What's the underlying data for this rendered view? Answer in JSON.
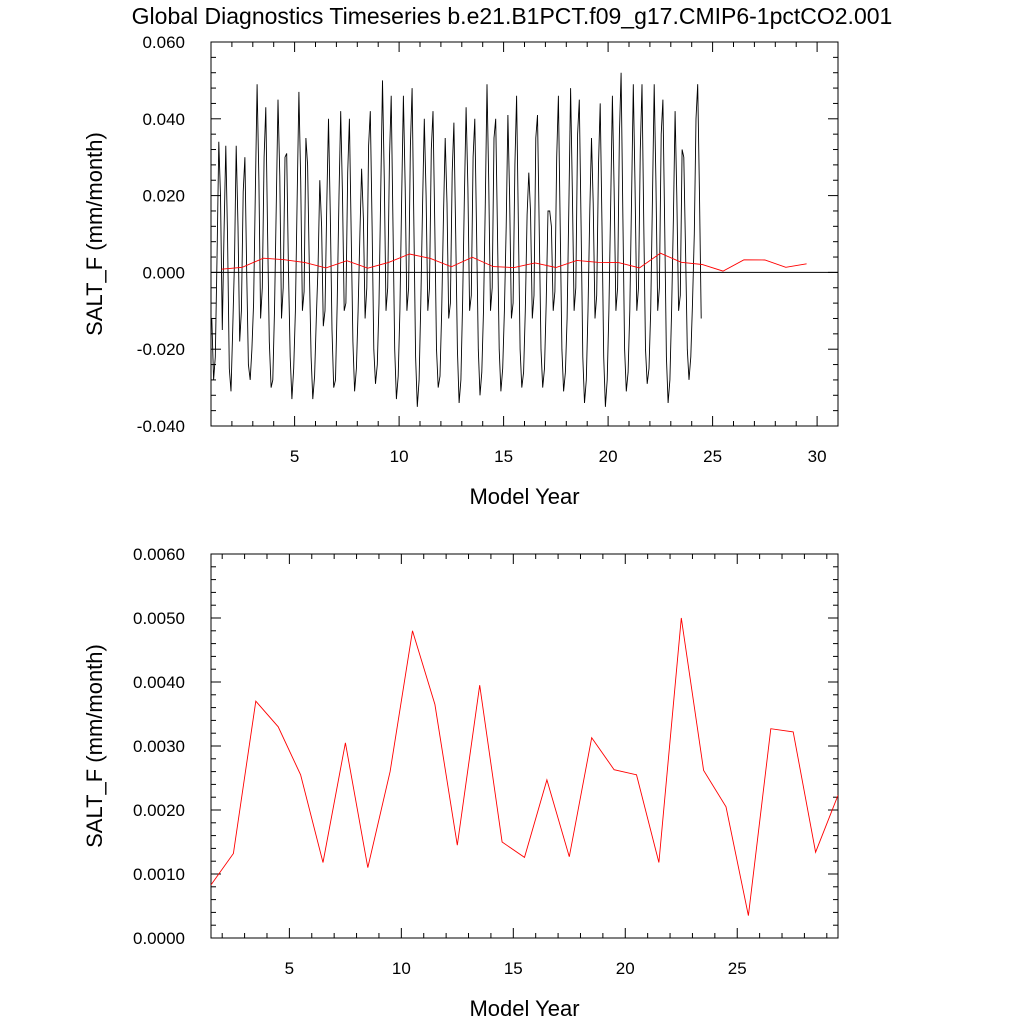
{
  "title": "Global Diagnostics Timeseries b.e21.B1PCT.f09_g17.CMIP6-1pctCO2.001",
  "colors": {
    "monthly": "#000000",
    "annual": "#ff0000",
    "frame": "#000000"
  },
  "chart_data": [
    {
      "type": "line",
      "xlabel": "Model Year",
      "ylabel": "SALT_F (mm/month)",
      "xlim": [
        1.0,
        31.0
      ],
      "ylim": [
        -0.04,
        0.06
      ],
      "xticks": [
        5,
        10,
        15,
        20,
        25,
        30
      ],
      "yticks": [
        -0.04,
        -0.02,
        0.0,
        0.02,
        0.04,
        0.06
      ],
      "ytick_labels": [
        "-0.040",
        "-0.020",
        "0.000",
        "0.020",
        "0.040",
        "0.060"
      ],
      "xtick_labels": [
        "5",
        "10",
        "15",
        "20",
        "25",
        "30"
      ],
      "zero_line": true,
      "series": [
        {
          "role": "monthly",
          "x_start": 1.04,
          "x_step": 0.08333,
          "y": [
            -0.012,
            -0.028,
            -0.022,
            0.005,
            0.034,
            0.02,
            -0.015,
            0.01,
            0.033,
            0.01,
            -0.025,
            -0.031,
            -0.015,
            0.003,
            0.033,
            0.012,
            -0.018,
            -0.01,
            0.021,
            0.03,
            0.0,
            -0.024,
            -0.028,
            -0.02,
            -0.008,
            0.022,
            0.049,
            0.024,
            -0.012,
            -0.004,
            0.03,
            0.043,
            0.01,
            -0.018,
            -0.03,
            -0.028,
            -0.01,
            0.018,
            0.045,
            0.025,
            -0.012,
            -0.004,
            0.03,
            0.031,
            0.0,
            -0.022,
            -0.033,
            -0.025,
            -0.01,
            0.02,
            0.047,
            0.024,
            -0.01,
            -0.005,
            0.035,
            0.028,
            0.0,
            -0.022,
            -0.033,
            -0.027,
            -0.012,
            0.002,
            0.024,
            0.012,
            -0.014,
            -0.01,
            0.018,
            0.04,
            0.015,
            -0.015,
            -0.03,
            -0.028,
            -0.008,
            0.02,
            0.042,
            0.02,
            -0.01,
            -0.008,
            0.026,
            0.04,
            0.01,
            -0.018,
            -0.031,
            -0.025,
            -0.01,
            0.01,
            0.027,
            0.014,
            -0.012,
            -0.004,
            0.033,
            0.042,
            0.012,
            -0.02,
            -0.029,
            -0.024,
            -0.008,
            0.022,
            0.05,
            0.024,
            -0.01,
            -0.004,
            0.03,
            0.046,
            0.012,
            -0.02,
            -0.033,
            -0.027,
            -0.01,
            0.02,
            0.046,
            0.022,
            -0.01,
            -0.004,
            0.033,
            0.048,
            0.012,
            -0.022,
            -0.035,
            -0.028,
            -0.008,
            0.018,
            0.04,
            0.02,
            -0.01,
            -0.004,
            0.032,
            0.042,
            0.012,
            -0.02,
            -0.03,
            -0.027,
            -0.01,
            0.015,
            0.035,
            0.018,
            -0.012,
            -0.008,
            0.026,
            0.039,
            0.01,
            -0.02,
            -0.034,
            -0.028,
            -0.008,
            0.02,
            0.043,
            0.022,
            -0.01,
            -0.006,
            0.03,
            0.04,
            0.01,
            -0.02,
            -0.032,
            -0.026,
            -0.01,
            0.018,
            0.049,
            0.024,
            -0.01,
            -0.004,
            0.035,
            0.04,
            0.01,
            -0.02,
            -0.031,
            -0.025,
            -0.01,
            0.012,
            0.041,
            0.02,
            -0.012,
            -0.008,
            0.028,
            0.046,
            0.012,
            -0.02,
            -0.03,
            -0.026,
            -0.01,
            0.015,
            0.026,
            0.016,
            -0.012,
            -0.006,
            0.035,
            0.041,
            0.01,
            -0.02,
            -0.03,
            -0.025,
            -0.008,
            0.016,
            0.016,
            0.012,
            -0.01,
            -0.005,
            0.03,
            0.046,
            0.012,
            -0.02,
            -0.031,
            -0.026,
            -0.012,
            0.018,
            0.048,
            0.022,
            -0.01,
            -0.004,
            0.036,
            0.045,
            0.012,
            -0.022,
            -0.034,
            -0.028,
            -0.01,
            0.016,
            0.035,
            0.018,
            -0.012,
            -0.006,
            0.028,
            0.044,
            0.012,
            -0.022,
            -0.035,
            -0.028,
            -0.01,
            0.018,
            0.046,
            0.022,
            -0.01,
            -0.004,
            0.036,
            0.052,
            0.014,
            -0.02,
            -0.031,
            -0.026,
            -0.01,
            0.02,
            0.049,
            0.023,
            -0.01,
            -0.004,
            0.032,
            0.049,
            0.012,
            -0.02,
            -0.029,
            -0.025,
            -0.01,
            0.02,
            0.049,
            0.024,
            -0.01,
            -0.004,
            0.036,
            0.045,
            0.012,
            -0.022,
            -0.034,
            -0.028,
            -0.01,
            0.014,
            0.042,
            0.02,
            -0.01,
            -0.006,
            0.032,
            0.03,
            0.005,
            -0.02,
            -0.028,
            -0.022,
            -0.008,
            0.01,
            0.04,
            0.049,
            0.02,
            -0.012
          ]
        },
        {
          "role": "annual",
          "x": [
            1.5,
            2.5,
            3.5,
            4.5,
            5.5,
            6.5,
            7.5,
            8.5,
            9.5,
            10.5,
            11.5,
            12.5,
            13.5,
            14.5,
            15.5,
            16.5,
            17.5,
            18.5,
            19.5,
            20.5,
            21.5,
            22.5,
            23.5,
            24.5,
            25.5,
            26.5,
            27.5,
            28.5,
            29.5
          ],
          "y": [
            0.00083,
            0.00132,
            0.0037,
            0.0033,
            0.00255,
            0.00118,
            0.00305,
            0.0011,
            0.0026,
            0.0048,
            0.00365,
            0.00145,
            0.00395,
            0.0015,
            0.00126,
            0.00247,
            0.00127,
            0.00313,
            0.00263,
            0.00255,
            0.00118,
            0.005,
            0.00262,
            0.00205,
            0.00035,
            0.00327,
            0.00322,
            0.00134,
            0.00223
          ]
        }
      ]
    },
    {
      "type": "line",
      "xlabel": "Model Year",
      "ylabel": "SALT_F (mm/month)",
      "xlim": [
        1.5,
        29.5
      ],
      "ylim": [
        0.0,
        0.006
      ],
      "xticks": [
        5,
        10,
        15,
        20,
        25
      ],
      "xtick_labels": [
        "5",
        "10",
        "15",
        "20",
        "25"
      ],
      "yticks": [
        0.0,
        0.001,
        0.002,
        0.003,
        0.004,
        0.005,
        0.006
      ],
      "ytick_labels": [
        "0.0000",
        "0.0010",
        "0.0020",
        "0.0030",
        "0.0040",
        "0.0050",
        "0.0060"
      ],
      "zero_line": false,
      "series": [
        {
          "role": "annual",
          "x": [
            1.5,
            2.5,
            3.5,
            4.5,
            5.5,
            6.5,
            7.5,
            8.5,
            9.5,
            10.5,
            11.5,
            12.5,
            13.5,
            14.5,
            15.5,
            16.5,
            17.5,
            18.5,
            19.5,
            20.5,
            21.5,
            22.5,
            23.5,
            24.5,
            25.5,
            26.5,
            27.5,
            28.5,
            29.5
          ],
          "y": [
            0.00083,
            0.00132,
            0.0037,
            0.0033,
            0.00255,
            0.00118,
            0.00305,
            0.0011,
            0.0026,
            0.0048,
            0.00365,
            0.00145,
            0.00395,
            0.0015,
            0.00126,
            0.00247,
            0.00127,
            0.00313,
            0.00263,
            0.00255,
            0.00118,
            0.005,
            0.00262,
            0.00205,
            0.00035,
            0.00327,
            0.00322,
            0.00134,
            0.00223
          ]
        }
      ]
    }
  ]
}
